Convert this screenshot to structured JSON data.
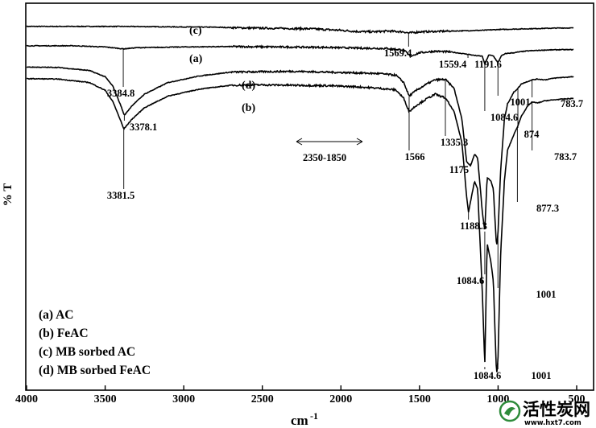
{
  "chart_data": {
    "type": "line",
    "xlabel": "cm",
    "xlabel_sup": "-1",
    "ylabel": "% T",
    "xlim": [
      4000,
      520
    ],
    "x_reversed": true,
    "ylim": [
      0,
      100
    ],
    "x_ticks": [
      "4000",
      "3500",
      "3000",
      "2500",
      "2000",
      "1500",
      "1000",
      "500"
    ],
    "legend": {
      "placement": "bottom-left",
      "entries": [
        "(a) AC",
        "(b) FeAC",
        "(c) MB sorbed AC",
        "(d) MB sorbed FeAC"
      ]
    },
    "series": [
      {
        "id": "c",
        "label": "(c)",
        "x": [
          4000,
          3700,
          3400,
          3100,
          2800,
          2600,
          2400,
          2200,
          2100,
          2000,
          1900,
          1800,
          1700,
          1600,
          1569.4,
          1500,
          1400,
          1300,
          1200,
          1100,
          1000,
          900,
          800,
          700,
          600,
          520
        ],
        "y": [
          94,
          94,
          94,
          93.9,
          93.8,
          93.6,
          93.5,
          93.4,
          93.2,
          93,
          92.7,
          92.6,
          92.8,
          92.6,
          92.3,
          92.6,
          92.7,
          92.8,
          92.9,
          93,
          93.2,
          93.3,
          93.4,
          93.5,
          93.6,
          93.6
        ]
      },
      {
        "id": "a",
        "label": "(a)",
        "x": [
          4000,
          3700,
          3500,
          3384.8,
          3300,
          3000,
          2700,
          2400,
          2100,
          1900,
          1700,
          1600,
          1559.4,
          1500,
          1400,
          1300,
          1191.6,
          1150,
          1100,
          1084.6,
          1060,
          1030,
          1001,
          980,
          950,
          900,
          850,
          800,
          700,
          600,
          520
        ],
        "y": [
          89,
          89,
          88.7,
          88.2,
          88.5,
          88.7,
          88.8,
          88.7,
          88.6,
          88.4,
          88.3,
          87.9,
          86.3,
          87.2,
          87.6,
          87.4,
          86.8,
          86.5,
          86.3,
          84.2,
          86.6,
          86.4,
          84.6,
          86.4,
          87,
          87.2,
          87.5,
          87.7,
          87.9,
          88,
          88
        ]
      },
      {
        "id": "d",
        "label": "(d)",
        "x": [
          4000,
          3800,
          3600,
          3500,
          3450,
          3400,
          3378.1,
          3330,
          3250,
          3100,
          2900,
          2700,
          2500,
          2300,
          2100,
          1900,
          1750,
          1650,
          1600,
          1566,
          1520,
          1450,
          1400,
          1335.3,
          1280,
          1230,
          1200,
          1175,
          1150,
          1130,
          1100,
          1084.6,
          1070,
          1045,
          1030,
          1010,
          1001,
          985,
          960,
          940,
          900,
          874,
          850,
          810,
          783.7,
          750,
          700,
          650,
          600,
          520
        ],
        "y": [
          83.5,
          83.4,
          82.6,
          81,
          78.5,
          73.5,
          71,
          73.5,
          76.5,
          79.5,
          81.2,
          82.2,
          82.3,
          82.4,
          82.2,
          82,
          81.8,
          81.4,
          79.5,
          76,
          77.5,
          79.2,
          80.2,
          80.3,
          78,
          70,
          59,
          58,
          61,
          60,
          46,
          41,
          55,
          54,
          52,
          37,
          40,
          56,
          70,
          74,
          77,
          78,
          79.2,
          79.8,
          80.2,
          80.4,
          80.2,
          80.6,
          80.8,
          81
        ]
      },
      {
        "id": "b",
        "label": "(b)",
        "x": [
          4000,
          3800,
          3600,
          3500,
          3450,
          3400,
          3381.5,
          3330,
          3250,
          3100,
          2900,
          2700,
          2500,
          2300,
          2100,
          1900,
          1750,
          1650,
          1600,
          1566,
          1520,
          1450,
          1400,
          1335.3,
          1280,
          1230,
          1200,
          1188.3,
          1150,
          1130,
          1100,
          1084.6,
          1070,
          1045,
          1030,
          1010,
          1001,
          985,
          960,
          940,
          900,
          877.3,
          850,
          810,
          783.7,
          750,
          700,
          650,
          600,
          520
        ],
        "y": [
          80.5,
          80.4,
          79.5,
          77.5,
          74.5,
          69.5,
          67.5,
          70,
          73,
          76,
          77.8,
          78.8,
          78.9,
          78.8,
          78.7,
          78.4,
          78,
          77.6,
          75.4,
          72,
          73.6,
          75.4,
          76.5,
          75.5,
          72,
          64,
          50,
          46,
          54,
          52,
          25,
          6,
          38,
          33,
          28,
          4,
          7,
          34,
          54,
          62,
          66,
          68,
          71,
          73.5,
          74.5,
          74.2,
          74.8,
          75,
          75.2,
          75.4
        ]
      }
    ],
    "peak_labels": [
      {
        "text": "3384.8",
        "series": "a",
        "x": 3384.8
      },
      {
        "text": "3378.1",
        "series": "d",
        "x": 3378.1
      },
      {
        "text": "3381.5",
        "series": "b",
        "x": 3381.5
      },
      {
        "text": "1569.4",
        "series": "c",
        "x": 1569.4
      },
      {
        "text": "1559.4",
        "series": "a",
        "x": 1559.4
      },
      {
        "text": "1191.6",
        "series": "a",
        "x": 1191.6
      },
      {
        "text": "1084.6",
        "series": "a",
        "x": 1084.6
      },
      {
        "text": "1001",
        "series": "a",
        "x": 1001
      },
      {
        "text": "1566",
        "series": "d",
        "x": 1566
      },
      {
        "text": "1335.3",
        "series": "d",
        "x": 1335.3
      },
      {
        "text": "1175",
        "series": "d",
        "x": 1175
      },
      {
        "text": "874",
        "series": "d",
        "x": 874
      },
      {
        "text": "783.7",
        "series": "d",
        "x": 783.7
      },
      {
        "text": "1084.6",
        "series": "d",
        "x": 1084.6
      },
      {
        "text": "1001",
        "series": "d",
        "x": 1001
      },
      {
        "text": "783.7",
        "series": "b",
        "x": 783.7
      },
      {
        "text": "877.3",
        "series": "b",
        "x": 877.3
      },
      {
        "text": "1188.3",
        "series": "b",
        "x": 1188.3
      },
      {
        "text": "1084.6",
        "series": "b",
        "x": 1084.6
      },
      {
        "text": "1001",
        "series": "b",
        "x": 1001
      }
    ],
    "range_annotation": {
      "text": "2350-1850",
      "from": 2350,
      "to": 1850
    }
  },
  "watermark": {
    "text": "活性炭网",
    "url_text": "www.hxt7.com",
    "color": "#2e8b3a"
  }
}
